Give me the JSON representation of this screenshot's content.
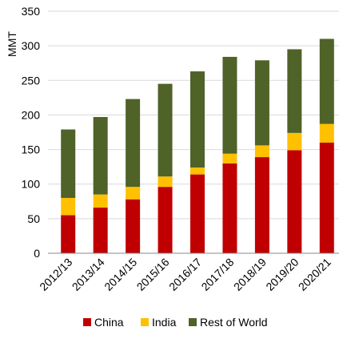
{
  "chart_data": {
    "type": "bar",
    "stacked": true,
    "title": "",
    "xlabel": "",
    "ylabel": "MMT",
    "ylim": [
      0,
      350
    ],
    "yticks": [
      0,
      50,
      100,
      150,
      200,
      250,
      300,
      350
    ],
    "grid": true,
    "legend_position": "bottom",
    "categories": [
      "2012/13",
      "2013/14",
      "2014/15",
      "2015/16",
      "2016/17",
      "2017/18",
      "2018/19",
      "2019/20",
      "2020/21"
    ],
    "series": [
      {
        "name": "China",
        "color": "#c00000",
        "values": [
          55,
          66,
          78,
          96,
          114,
          130,
          139,
          149,
          160
        ]
      },
      {
        "name": "India",
        "color": "#ffc000",
        "values": [
          25,
          19,
          18,
          15,
          10,
          14,
          17,
          25,
          27
        ]
      },
      {
        "name": "Rest of World",
        "color": "#4f6228",
        "values": [
          99,
          112,
          127,
          134,
          139,
          140,
          123,
          121,
          123
        ]
      }
    ]
  }
}
